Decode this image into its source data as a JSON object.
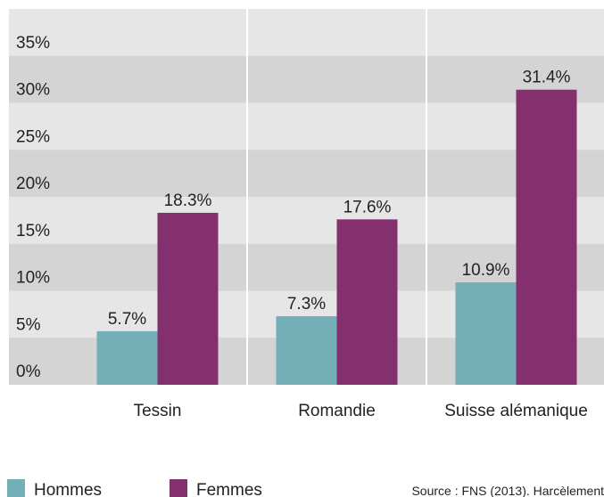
{
  "chart_data": {
    "type": "bar",
    "categories": [
      "Tessin",
      "Romandie",
      "Suisse alémanique"
    ],
    "series": [
      {
        "name": "Hommes",
        "color": "#74afb8",
        "values": [
          5.7,
          7.3,
          10.9
        ],
        "value_labels": [
          "5.7%",
          "7.3%",
          "10.9%"
        ]
      },
      {
        "name": "Femmes",
        "color": "#84306f",
        "values": [
          18.3,
          17.6,
          31.4
        ],
        "value_labels": [
          "18.3%",
          "17.6%",
          "31.4%"
        ]
      }
    ],
    "ylim": [
      0,
      40
    ],
    "yticks": [
      {
        "value": 0,
        "label": "0%"
      },
      {
        "value": 5,
        "label": "5%"
      },
      {
        "value": 10,
        "label": "10%"
      },
      {
        "value": 15,
        "label": "15%"
      },
      {
        "value": 20,
        "label": "20%"
      },
      {
        "value": 25,
        "label": "25%"
      },
      {
        "value": 30,
        "label": "30%"
      },
      {
        "value": 35,
        "label": "35%"
      }
    ],
    "grid": true,
    "legend": "bottom-left",
    "source": "Source : FNS (2013). Harcèlement"
  }
}
